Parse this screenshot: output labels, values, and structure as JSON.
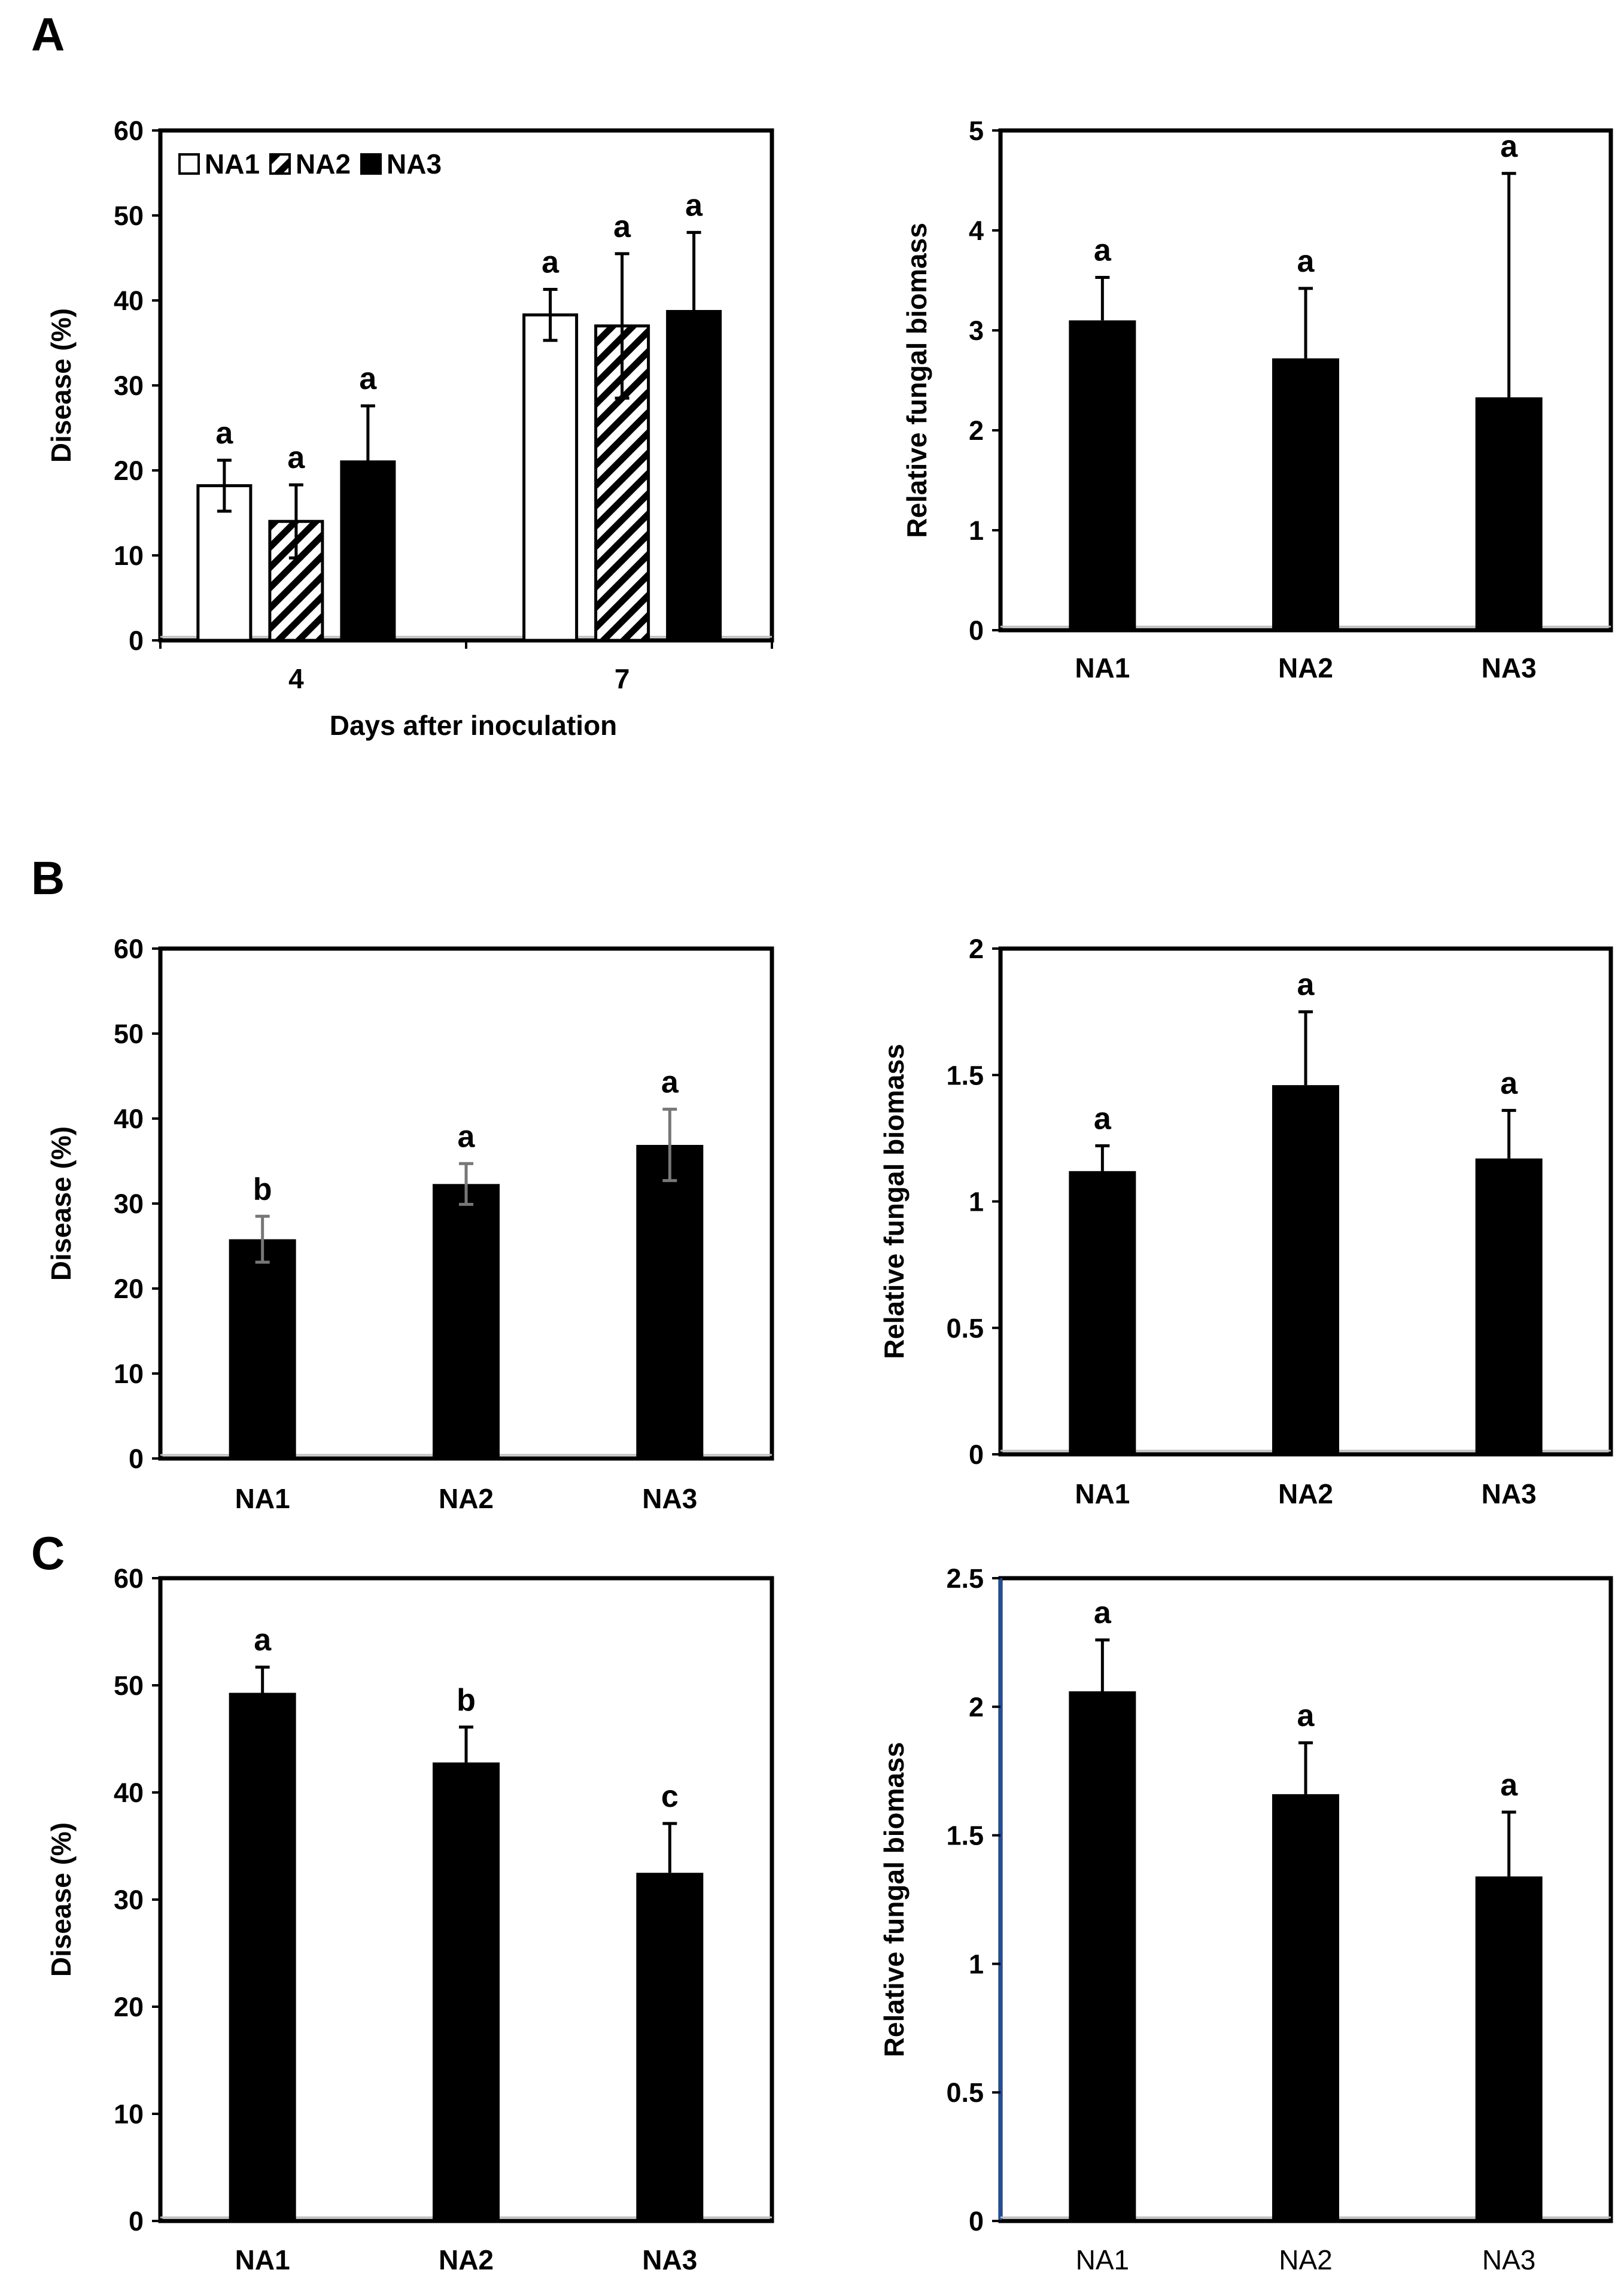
{
  "panels": [
    {
      "letter": "A"
    },
    {
      "letter": "B"
    },
    {
      "letter": "C"
    }
  ],
  "colors": {
    "bar_solid": "#000000",
    "bar_open": "#ffffff",
    "frame": "#000000",
    "accent_axis_c": "#1f4e9c"
  },
  "chart_data": [
    {
      "id": "A-disease",
      "panel": "A",
      "type": "bar",
      "title": "",
      "xlabel": "Days after inoculation",
      "ylabel": "Disease (%)",
      "ylim": [
        0,
        60
      ],
      "yticks": [
        "0",
        "10",
        "20",
        "30",
        "40",
        "50",
        "60"
      ],
      "categories": [
        "4",
        "7"
      ],
      "legend_position": "top-left",
      "series": [
        {
          "name": "NA1",
          "style": "open",
          "values": [
            18.2,
            38.3
          ],
          "errors": [
            3.0,
            3.0
          ],
          "letters": [
            "a",
            "a"
          ]
        },
        {
          "name": "NA2",
          "style": "hatched",
          "values": [
            14.0,
            37.0
          ],
          "errors": [
            4.3,
            8.5
          ],
          "letters": [
            "a",
            "a"
          ]
        },
        {
          "name": "NA3",
          "style": "solid",
          "values": [
            21.0,
            38.7
          ],
          "errors": [
            6.6,
            9.3
          ],
          "letters": [
            "a",
            "a"
          ]
        }
      ]
    },
    {
      "id": "A-biomass",
      "panel": "A",
      "type": "bar",
      "title": "",
      "xlabel": "",
      "ylabel": "Relative fungal biomass",
      "ylim": [
        0,
        5
      ],
      "yticks": [
        "0",
        "1",
        "2",
        "3",
        "4",
        "5"
      ],
      "categories": [
        "NA1",
        "NA2",
        "NA3"
      ],
      "values": [
        3.1,
        2.72,
        2.33
      ],
      "errors": [
        0.43,
        0.7,
        2.24
      ],
      "letters": [
        "a",
        "a",
        "a"
      ]
    },
    {
      "id": "B-disease",
      "panel": "B",
      "type": "bar",
      "title": "",
      "xlabel": "",
      "ylabel": "Disease (%)",
      "ylim": [
        0,
        60
      ],
      "yticks": [
        "0",
        "10",
        "20",
        "30",
        "40",
        "50",
        "60"
      ],
      "categories": [
        "NA1",
        "NA2",
        "NA3"
      ],
      "values": [
        25.8,
        32.3,
        36.9
      ],
      "errors": [
        2.7,
        2.4,
        4.2
      ],
      "letters": [
        "b",
        "a",
        "a"
      ],
      "error_color": "#777777"
    },
    {
      "id": "B-biomass",
      "panel": "B",
      "type": "bar",
      "title": "",
      "xlabel": "",
      "ylabel": "Relative fungal biomass",
      "ylim": [
        0,
        2
      ],
      "yticks": [
        "0",
        "0.5",
        "1",
        "1.5",
        "2"
      ],
      "categories": [
        "NA1",
        "NA2",
        "NA3"
      ],
      "values": [
        1.12,
        1.46,
        1.17
      ],
      "errors": [
        0.1,
        0.29,
        0.19
      ],
      "letters": [
        "a",
        "a",
        "a"
      ]
    },
    {
      "id": "C-disease",
      "panel": "C",
      "type": "bar",
      "title": "",
      "xlabel": "",
      "ylabel": "Disease (%)",
      "ylim": [
        0,
        60
      ],
      "yticks": [
        "0",
        "10",
        "20",
        "30",
        "40",
        "50",
        "60"
      ],
      "categories": [
        "NA1",
        "NA2",
        "NA3"
      ],
      "values": [
        49.3,
        42.8,
        32.5
      ],
      "errors": [
        2.4,
        3.3,
        4.6
      ],
      "letters": [
        "a",
        "b",
        "c"
      ]
    },
    {
      "id": "C-biomass",
      "panel": "C",
      "type": "bar",
      "title": "",
      "xlabel": "",
      "ylabel": "Relative fungal biomass",
      "ylim": [
        0,
        2.5
      ],
      "yticks": [
        "0",
        "0.5",
        "1",
        "1.5",
        "2",
        "2.5"
      ],
      "categories": [
        "NA1",
        "NA2",
        "NA3"
      ],
      "values": [
        2.06,
        1.66,
        1.34
      ],
      "errors": [
        0.2,
        0.2,
        0.25
      ],
      "letters": [
        "a",
        "a",
        "a"
      ],
      "category_label_weight": "normal",
      "left_axis_color": "#1f4e9c"
    }
  ]
}
